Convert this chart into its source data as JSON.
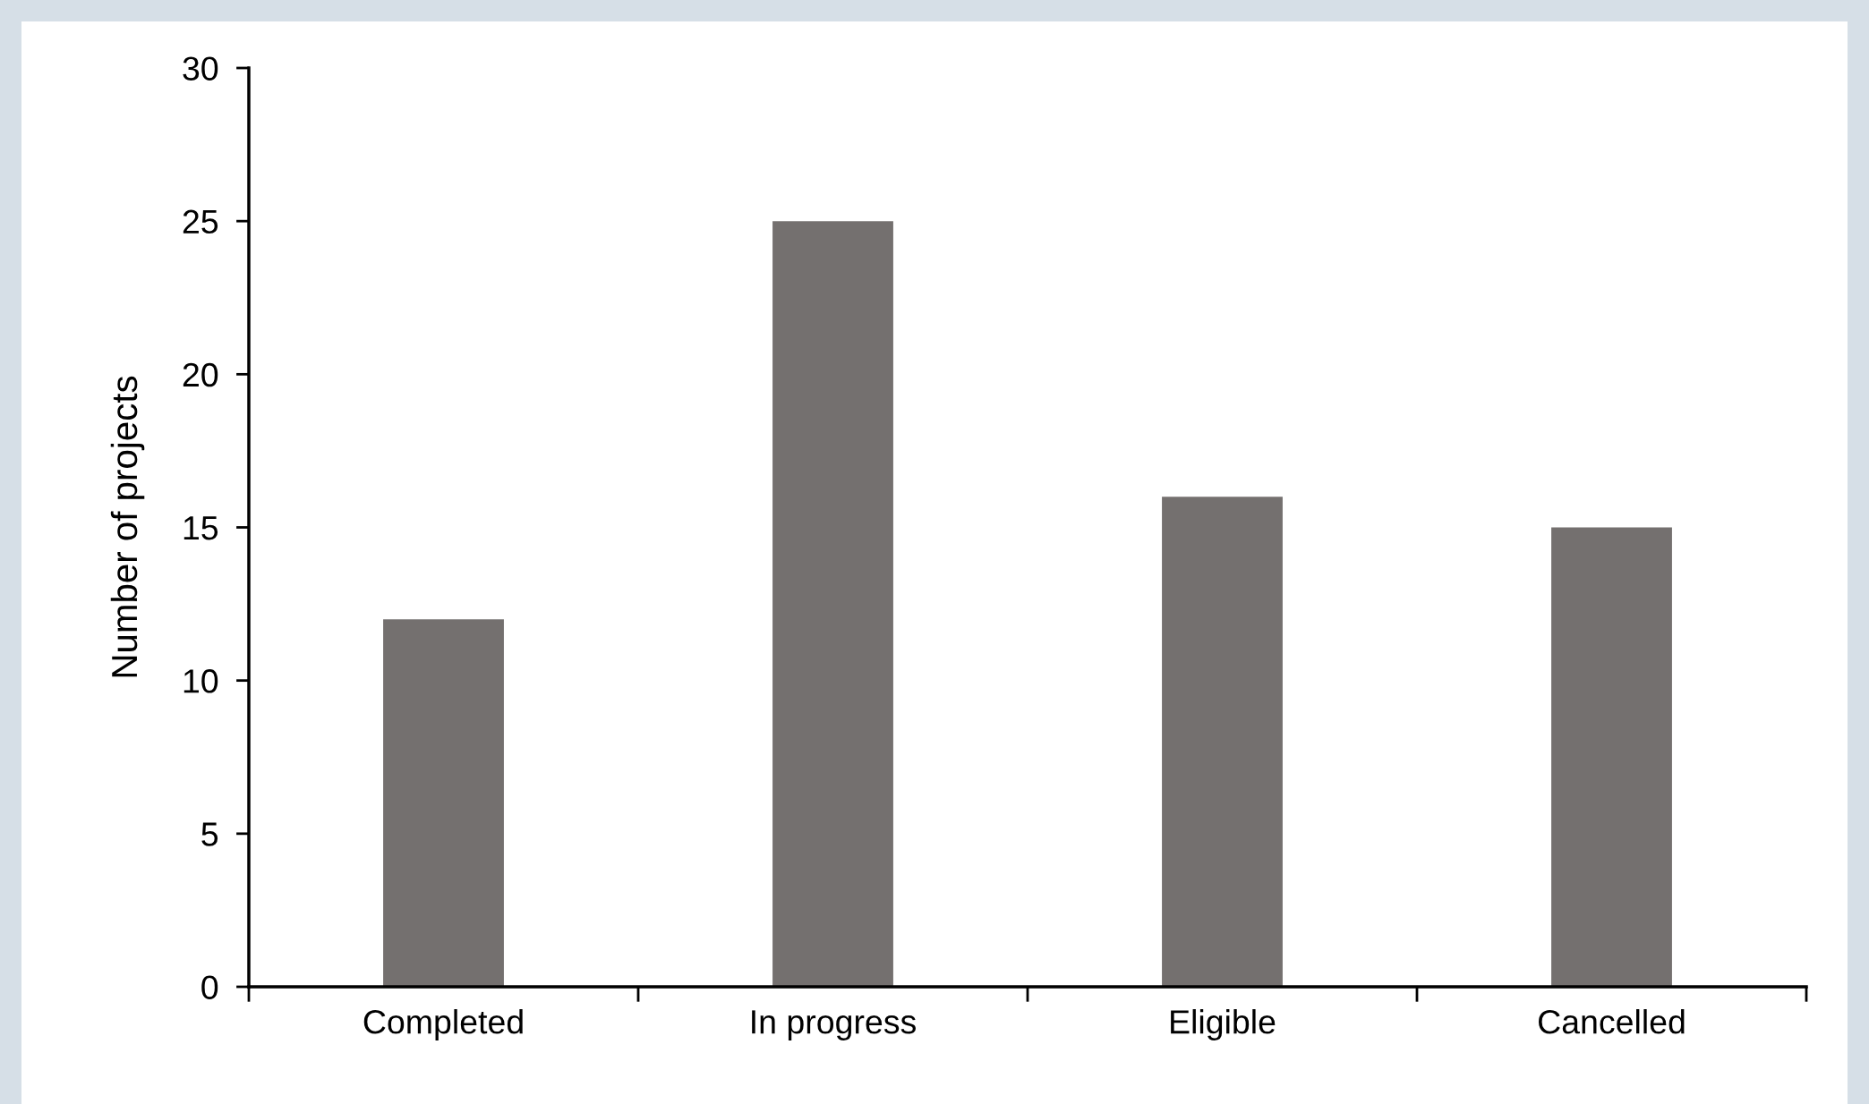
{
  "chart_data": {
    "type": "bar",
    "ylabel": "Number of projects",
    "categories": [
      "Completed",
      "In progress",
      "Eligible",
      "Cancelled"
    ],
    "values": [
      12,
      25,
      16,
      15
    ],
    "color": "#74706f",
    "ylim": [
      0,
      30
    ],
    "yticks": [
      0,
      5,
      10,
      15,
      20,
      25,
      30
    ],
    "grid": false,
    "legend": false
  }
}
